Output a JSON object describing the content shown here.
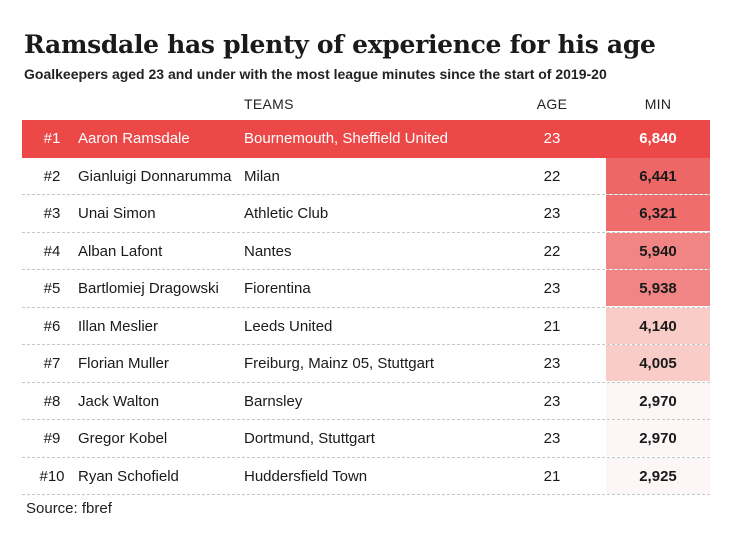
{
  "colors": {
    "highlight": "#ec4848",
    "accent": "#d93b3b",
    "text": "#1a1a1a"
  },
  "chart_data": {
    "type": "table",
    "title": "Ramsdale has plenty of experience for his age",
    "subtitle": "Goalkeepers aged 23 and under with the most league minutes since the start of 2019-20",
    "columns": {
      "teams": "TEAMS",
      "age": "AGE",
      "min": "MIN"
    },
    "rows": [
      {
        "rank": "#1",
        "name": "Aaron Ramsdale",
        "teams": "Bournemouth, Sheffield United",
        "age": "23",
        "min": "6,840",
        "minutes": 6840
      },
      {
        "rank": "#2",
        "name": "Gianluigi Donnarumma",
        "teams": "Milan",
        "age": "22",
        "min": "6,441",
        "minutes": 6441
      },
      {
        "rank": "#3",
        "name": "Unai Simon",
        "teams": "Athletic Club",
        "age": "23",
        "min": "6,321",
        "minutes": 6321
      },
      {
        "rank": "#4",
        "name": "Alban Lafont",
        "teams": "Nantes",
        "age": "22",
        "min": "5,940",
        "minutes": 5940
      },
      {
        "rank": "#5",
        "name": "Bartlomiej Dragowski",
        "teams": "Fiorentina",
        "age": "23",
        "min": "5,938",
        "minutes": 5938
      },
      {
        "rank": "#6",
        "name": "Illan Meslier",
        "teams": "Leeds United",
        "age": "21",
        "min": "4,140",
        "minutes": 4140
      },
      {
        "rank": "#7",
        "name": "Florian Muller",
        "teams": "Freiburg, Mainz 05, Stuttgart",
        "age": "23",
        "min": "4,005",
        "minutes": 4005
      },
      {
        "rank": "#8",
        "name": "Jack Walton",
        "teams": "Barnsley",
        "age": "23",
        "min": "2,970",
        "minutes": 2970
      },
      {
        "rank": "#9",
        "name": "Gregor Kobel",
        "teams": "Dortmund, Stuttgart",
        "age": "23",
        "min": "2,970",
        "minutes": 2970
      },
      {
        "rank": "#10",
        "name": "Ryan Schofield",
        "teams": "Huddersfield Town",
        "age": "21",
        "min": "2,925",
        "minutes": 2925
      }
    ],
    "source": "Source: fbref"
  }
}
